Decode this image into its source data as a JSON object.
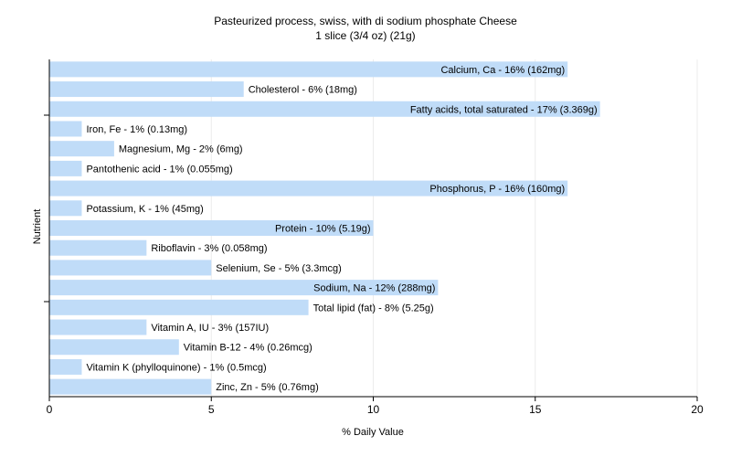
{
  "chart_data": {
    "type": "bar",
    "orientation": "horizontal",
    "title": "Pasteurized process, swiss, with di sodium phosphate Cheese",
    "subtitle": "1 slice (3/4 oz) (21g)",
    "xlabel": "% Daily Value",
    "ylabel": "Nutrient",
    "xlim": [
      0,
      20
    ],
    "xticks": [
      0,
      5,
      10,
      15,
      20
    ],
    "grid": true,
    "bar_color": "#c0dcf8",
    "categories": [
      "Calcium, Ca",
      "Cholesterol",
      "Fatty acids, total saturated",
      "Iron, Fe",
      "Magnesium, Mg",
      "Pantothenic acid",
      "Phosphorus, P",
      "Potassium, K",
      "Protein",
      "Riboflavin",
      "Selenium, Se",
      "Sodium, Na",
      "Total lipid (fat)",
      "Vitamin A, IU",
      "Vitamin B-12",
      "Vitamin K (phylloquinone)",
      "Zinc, Zn"
    ],
    "values": [
      16,
      6,
      17,
      1,
      2,
      1,
      16,
      1,
      10,
      3,
      5,
      12,
      8,
      3,
      4,
      1,
      5
    ],
    "bar_labels": [
      "Calcium, Ca - 16% (162mg)",
      "Cholesterol - 6% (18mg)",
      "Fatty acids, total saturated - 17% (3.369g)",
      "Iron, Fe - 1% (0.13mg)",
      "Magnesium, Mg - 2% (6mg)",
      "Pantothenic acid - 1% (0.055mg)",
      "Phosphorus, P - 16% (160mg)",
      "Potassium, K - 1% (45mg)",
      "Protein - 10% (5.19g)",
      "Riboflavin - 3% (0.058mg)",
      "Selenium, Se - 5% (3.3mcg)",
      "Sodium, Na - 12% (288mg)",
      "Total lipid (fat) - 8% (5.25g)",
      "Vitamin A, IU - 3% (157IU)",
      "Vitamin B-12 - 4% (0.26mcg)",
      "Vitamin K (phylloquinone) - 1% (0.5mcg)",
      "Zinc, Zn - 5% (0.76mg)"
    ]
  }
}
